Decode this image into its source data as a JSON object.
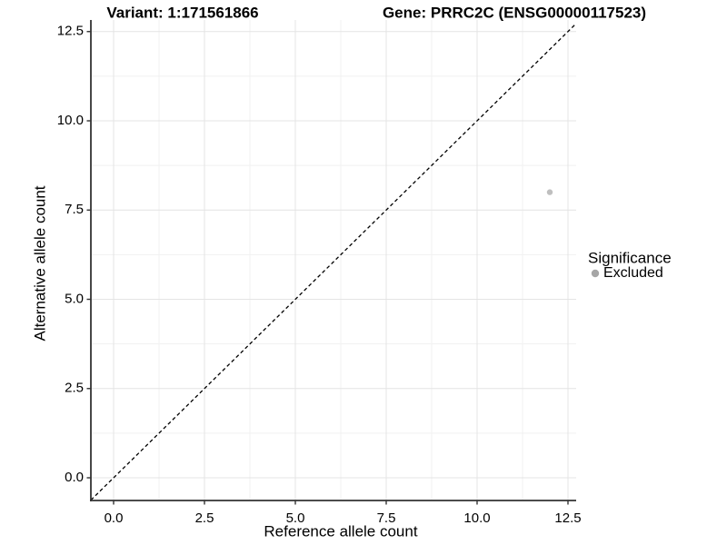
{
  "chart_data": {
    "type": "scatter",
    "titles": [
      {
        "id": "variant",
        "text": "Variant: 1:171561866"
      },
      {
        "id": "gene",
        "text": "Gene: PRRC2C (ENSG00000117523)"
      }
    ],
    "xlabel": "Reference allele count",
    "ylabel": "Alternative allele count",
    "x_ticks": [
      0.0,
      2.5,
      5.0,
      7.5,
      10.0,
      12.5
    ],
    "y_ticks": [
      0.0,
      2.5,
      5.0,
      7.5,
      10.0,
      12.5
    ],
    "x_tick_labels": [
      "0.0",
      "2.5",
      "5.0",
      "7.5",
      "10.0",
      "12.5"
    ],
    "y_tick_labels": [
      "0.0",
      "2.5",
      "5.0",
      "7.5",
      "10.0",
      "12.5"
    ],
    "xlim": [
      -0.625,
      12.725
    ],
    "ylim": [
      -0.636,
      12.824
    ],
    "grid": {
      "major": true,
      "minor": true
    },
    "abline": {
      "slope": 1,
      "intercept": 0,
      "style": "dashed",
      "color": "#000000"
    },
    "series": [
      {
        "name": "Excluded",
        "color": "#bfbfbf",
        "points": [
          {
            "x": 12,
            "y": 8
          }
        ]
      }
    ],
    "legend": {
      "position": "right",
      "title": "Significance",
      "items": [
        {
          "label": "Excluded",
          "color": "#a6a6a6"
        }
      ]
    },
    "colors": {
      "axis_line": "#333333",
      "tick_mark": "#333333",
      "tick_text": "#1a1a1a",
      "grid_major": "#e4e4e4",
      "grid_minor": "#f1f1f1",
      "background": "#ffffff"
    }
  }
}
